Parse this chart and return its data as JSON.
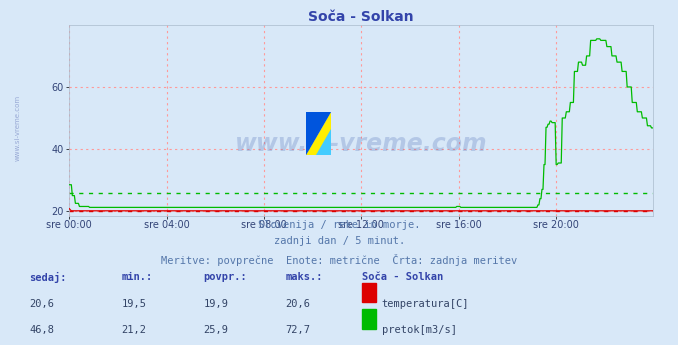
{
  "title": "Soča - Solkan",
  "background_color": "#d8e8f8",
  "plot_bg_color": "#d8e8f8",
  "ylim": [
    18.5,
    80
  ],
  "yticks": [
    20,
    40,
    60
  ],
  "xlabel_ticks": [
    "sre 00:00",
    "sre 04:00",
    "sre 08:00",
    "sre 12:00",
    "sre 16:00",
    "sre 20:00"
  ],
  "xtick_positions": [
    0,
    96,
    192,
    288,
    384,
    480
  ],
  "total_points": 576,
  "temp_color": "#dd0000",
  "flow_color": "#00bb00",
  "flow_avg": 25.9,
  "temp_avg": 19.9,
  "watermark_text": "www.si-vreme.com",
  "subtitle_lines": [
    "Slovenija / reke in morje.",
    "zadnji dan / 5 minut.",
    "Meritve: povprečne  Enote: metrične  Črta: zadnja meritev"
  ],
  "table_headers": [
    "sedaj:",
    "min.:",
    "povpr.:",
    "maks.:",
    "Soča - Solkan"
  ],
  "table_row1_vals": [
    "20,6",
    "19,5",
    "19,9",
    "20,6"
  ],
  "table_row1_label": "temperatura[C]",
  "table_row2_vals": [
    "46,8",
    "21,2",
    "25,9",
    "72,7"
  ],
  "table_row2_label": "pretok[m3/s]",
  "logo_yellow": "#ffee00",
  "logo_blue": "#0055dd",
  "logo_cyan": "#44ccff"
}
